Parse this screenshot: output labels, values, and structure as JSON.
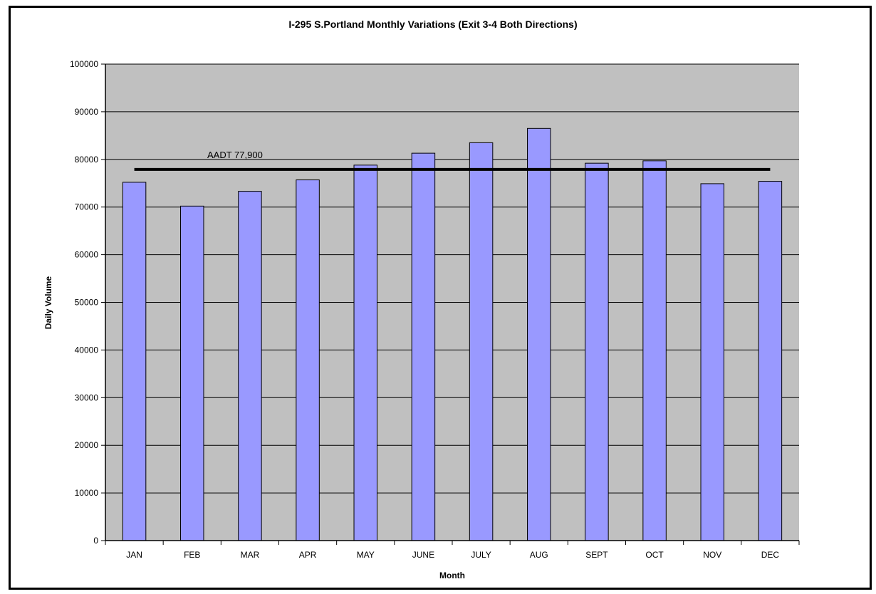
{
  "chart_data": {
    "type": "bar",
    "title": "I-295 S.Portland Monthly Variations (Exit 3-4 Both Directions)",
    "xlabel": "Month",
    "ylabel": "Daily Volume",
    "categories": [
      "JAN",
      "FEB",
      "MAR",
      "APR",
      "MAY",
      "JUNE",
      "JULY",
      "AUG",
      "SEPT",
      "OCT",
      "NOV",
      "DEC"
    ],
    "series": [
      {
        "values": [
          75200,
          70200,
          73300,
          75700,
          78800,
          81300,
          83500,
          86500,
          79200,
          79700,
          74900,
          75400
        ]
      }
    ],
    "reference_line": {
      "value": 77900,
      "label": "AADT 77,900"
    },
    "ylim": [
      0,
      100000
    ],
    "yticks": [
      "0",
      "10000",
      "20000",
      "30000",
      "40000",
      "50000",
      "60000",
      "70000",
      "80000",
      "90000",
      "100000"
    ],
    "grid": true,
    "legend": "none",
    "colors": {
      "bar": "#9999ff",
      "plot_background": "#c0c0c0",
      "line": "#000000"
    }
  }
}
